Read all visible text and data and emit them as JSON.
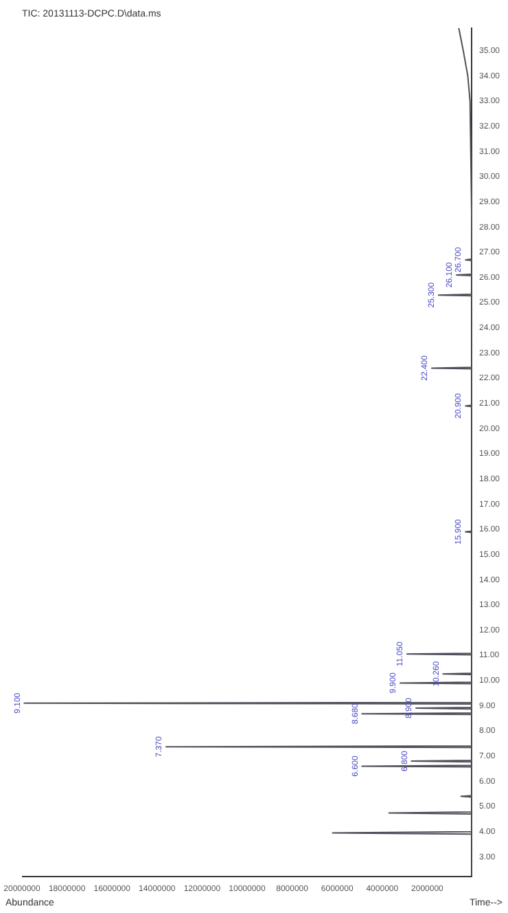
{
  "chart_data": {
    "type": "line",
    "title": "TIC: 20131113-DCPC.D\\data.ms",
    "xlabel": "Abundance",
    "ylabel": "Time-->",
    "series": [
      {
        "color": "#50505a",
        "values": [
          2.2,
          3.9,
          3.95,
          4.0,
          4.7,
          4.74,
          4.78,
          5.37,
          5.4,
          5.43,
          6.57,
          6.6,
          6.63,
          6.77,
          6.8,
          6.83,
          7.34,
          7.37,
          7.4,
          8.65,
          8.68,
          8.71,
          8.87,
          8.9,
          8.93,
          9.07,
          9.1,
          9.13,
          9.87,
          9.9,
          9.93,
          10.23,
          10.26,
          10.29,
          11.02,
          11.05,
          11.08,
          15.87,
          15.9,
          15.93,
          20.87,
          20.9,
          20.93,
          22.37,
          22.4,
          22.43,
          25.27,
          25.3,
          25.33,
          26.07,
          26.1,
          26.13,
          26.67,
          26.7,
          26.73,
          33,
          34,
          35,
          35.9
        ],
        "x": [
          0,
          0,
          6200000,
          0,
          0,
          3700000,
          0,
          0,
          500000,
          0,
          0,
          4900000,
          0,
          0,
          2700000,
          0,
          0,
          13600000,
          0,
          0,
          4900000,
          0,
          0,
          2500000,
          0,
          0,
          19900000,
          0,
          0,
          3200000,
          0,
          0,
          1300000,
          0,
          0,
          2900000,
          0,
          0,
          300000,
          0,
          0,
          300000,
          0,
          0,
          1800000,
          0,
          0,
          1500000,
          0,
          0,
          700000,
          0,
          0,
          300000,
          0,
          100000,
          200000,
          400000,
          600000
        ]
      }
    ],
    "ylim": [
      2.2,
      35.9
    ],
    "yticks": [
      {
        "value": 3,
        "label": "3.00"
      },
      {
        "value": 4,
        "label": "4.00"
      },
      {
        "value": 5,
        "label": "5.00"
      },
      {
        "value": 6,
        "label": "6.00"
      },
      {
        "value": 7,
        "label": "7.00"
      },
      {
        "value": 8,
        "label": "8.00"
      },
      {
        "value": 9,
        "label": "9.00"
      },
      {
        "value": 10,
        "label": "10.00"
      },
      {
        "value": 11,
        "label": "11.00"
      },
      {
        "value": 12,
        "label": "12.00"
      },
      {
        "value": 13,
        "label": "13.00"
      },
      {
        "value": 14,
        "label": "14.00"
      },
      {
        "value": 15,
        "label": "15.00"
      },
      {
        "value": 16,
        "label": "16.00"
      },
      {
        "value": 17,
        "label": "17.00"
      },
      {
        "value": 18,
        "label": "18.00"
      },
      {
        "value": 19,
        "label": "19.00"
      },
      {
        "value": 20,
        "label": "20.00"
      },
      {
        "value": 21,
        "label": "21.00"
      },
      {
        "value": 22,
        "label": "22.00"
      },
      {
        "value": 23,
        "label": "23.00"
      },
      {
        "value": 24,
        "label": "24.00"
      },
      {
        "value": 25,
        "label": "25.00"
      },
      {
        "value": 26,
        "label": "26.00"
      },
      {
        "value": 27,
        "label": "27.00"
      },
      {
        "value": 28,
        "label": "28.00"
      },
      {
        "value": 29,
        "label": "29.00"
      },
      {
        "value": 30,
        "label": "30.00"
      },
      {
        "value": 31,
        "label": "31.00"
      },
      {
        "value": 32,
        "label": "32.00"
      },
      {
        "value": 33,
        "label": "33.00"
      },
      {
        "value": 34,
        "label": "34.00"
      },
      {
        "value": 35,
        "label": "35.00"
      }
    ],
    "xlim": [
      20000000,
      0
    ],
    "xticks": [
      2000000,
      4000000,
      6000000,
      8000000,
      10000000,
      12000000,
      14000000,
      16000000,
      18000000,
      20000000
    ],
    "annotations": [
      {
        "text": "6.600",
        "x": 4900000,
        "y": 6.6
      },
      {
        "text": "6.800",
        "x": 2700000,
        "y": 6.8
      },
      {
        "text": "7.370",
        "x": 13600000,
        "y": 7.37
      },
      {
        "text": "8.680",
        "x": 4900000,
        "y": 8.68
      },
      {
        "text": "8.900",
        "x": 2500000,
        "y": 8.9
      },
      {
        "text": "9.100",
        "x": 19900000,
        "y": 9.1
      },
      {
        "text": "9.900",
        "x": 3200000,
        "y": 9.9
      },
      {
        "text": "10.260",
        "x": 1300000,
        "y": 10.26
      },
      {
        "text": "11.050",
        "x": 2900000,
        "y": 11.05
      },
      {
        "text": "15.900",
        "x": 300000,
        "y": 15.9
      },
      {
        "text": "20.900",
        "x": 300000,
        "y": 20.9
      },
      {
        "text": "22.400",
        "x": 1800000,
        "y": 22.4
      },
      {
        "text": "25.300",
        "x": 1500000,
        "y": 25.3
      },
      {
        "text": "26.100",
        "x": 700000,
        "y": 26.1
      },
      {
        "text": "26.700",
        "x": 300000,
        "y": 26.7
      }
    ]
  }
}
